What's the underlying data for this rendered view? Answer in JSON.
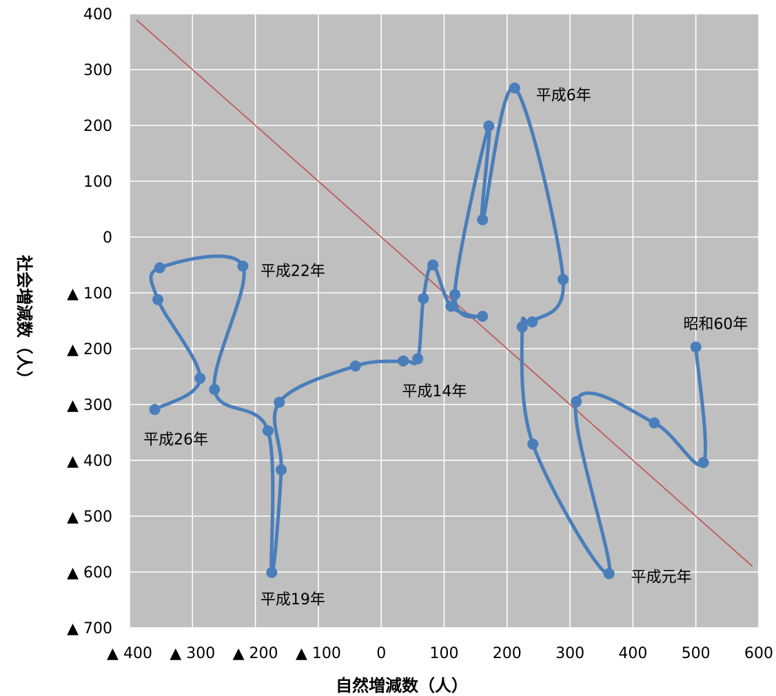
{
  "chart_data": {
    "type": "scatter",
    "title": "",
    "xlabel": "自然増減数（人）",
    "ylabel": "社会増減数（人）",
    "xlim": [
      -400,
      600
    ],
    "ylim": [
      -700,
      400
    ],
    "x_ticks": [
      {
        "value": -400,
        "label": "▲ 400"
      },
      {
        "value": -300,
        "label": "▲ 300"
      },
      {
        "value": -200,
        "label": "▲ 200"
      },
      {
        "value": -100,
        "label": "▲ 100"
      },
      {
        "value": 0,
        "label": "0"
      },
      {
        "value": 100,
        "label": "100"
      },
      {
        "value": 200,
        "label": "200"
      },
      {
        "value": 300,
        "label": "300"
      },
      {
        "value": 400,
        "label": "400"
      },
      {
        "value": 500,
        "label": "500"
      },
      {
        "value": 600,
        "label": "600"
      }
    ],
    "y_ticks": [
      {
        "value": 400,
        "label": "400"
      },
      {
        "value": 300,
        "label": "300"
      },
      {
        "value": 200,
        "label": "200"
      },
      {
        "value": 100,
        "label": "100"
      },
      {
        "value": 0,
        "label": "0"
      },
      {
        "value": -100,
        "label": "▲ 100"
      },
      {
        "value": -200,
        "label": "▲ 200"
      },
      {
        "value": -300,
        "label": "▲ 300"
      },
      {
        "value": -400,
        "label": "▲ 400"
      },
      {
        "value": -500,
        "label": "▲ 500"
      },
      {
        "value": -600,
        "label": "▲ 600"
      },
      {
        "value": -700,
        "label": "▲ 700"
      }
    ],
    "grid": true,
    "series": [
      {
        "color": "#4a7ebb",
        "points": [
          {
            "x": 500,
            "y": -197
          },
          {
            "x": 512,
            "y": -404
          },
          {
            "x": 434,
            "y": -333
          },
          {
            "x": 310,
            "y": -295
          },
          {
            "x": 362,
            "y": -603
          },
          {
            "x": 241,
            "y": -371
          },
          {
            "x": 224,
            "y": -161
          },
          {
            "x": 240,
            "y": -152
          },
          {
            "x": 289,
            "y": -76
          },
          {
            "x": 212,
            "y": 267
          },
          {
            "x": 161,
            "y": 31
          },
          {
            "x": 171,
            "y": 199
          },
          {
            "x": 117,
            "y": -103
          },
          {
            "x": 161,
            "y": -142
          },
          {
            "x": 111,
            "y": -124
          },
          {
            "x": 82,
            "y": -50
          },
          {
            "x": 67,
            "y": -110
          },
          {
            "x": 58,
            "y": -218
          },
          {
            "x": 35,
            "y": -222
          },
          {
            "x": -41,
            "y": -231
          },
          {
            "x": -162,
            "y": -296
          },
          {
            "x": -159,
            "y": -417
          },
          {
            "x": -174,
            "y": -601
          },
          {
            "x": -180,
            "y": -347
          },
          {
            "x": -265,
            "y": -273
          },
          {
            "x": -220,
            "y": -52
          },
          {
            "x": -352,
            "y": -55
          },
          {
            "x": -355,
            "y": -112
          },
          {
            "x": -288,
            "y": -253
          },
          {
            "x": -360,
            "y": -309
          }
        ]
      }
    ],
    "reference_line": {
      "color": "#c0504d",
      "from": [
        -389,
        389
      ],
      "to": [
        590,
        -590
      ]
    },
    "annotations": [
      {
        "text": "昭和60年",
        "x": 480,
        "y": -155,
        "anchor": "start"
      },
      {
        "text": "平成元年",
        "x": 397,
        "y": -608,
        "anchor": "start"
      },
      {
        "text": "平成6年",
        "x": 246,
        "y": 255,
        "anchor": "start"
      },
      {
        "text": "平成14年",
        "x": 33,
        "y": -275,
        "anchor": "start"
      },
      {
        "text": "平成19年",
        "x": -192,
        "y": -648,
        "anchor": "start"
      },
      {
        "text": "平成22年",
        "x": -192,
        "y": -60,
        "anchor": "start"
      },
      {
        "text": "平成26年",
        "x": -378,
        "y": -362,
        "anchor": "start"
      }
    ]
  }
}
